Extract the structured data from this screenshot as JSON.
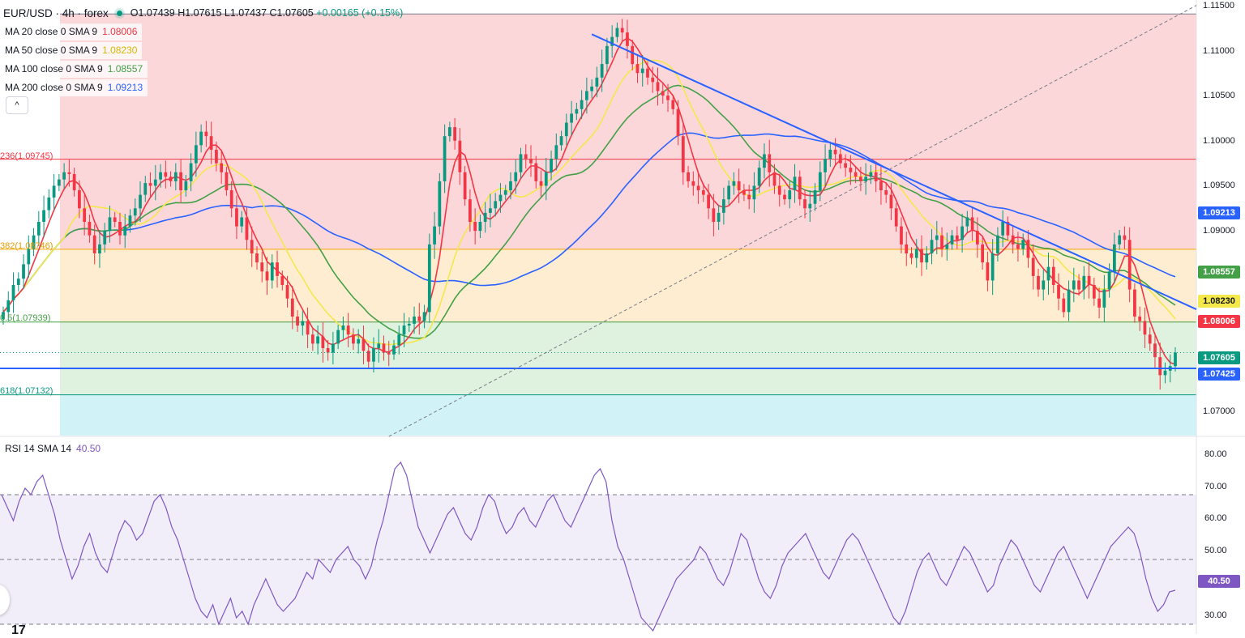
{
  "header": {
    "symbol": "EUR/USD · 4h · forex",
    "open": "O1.07439",
    "high": "H1.07615",
    "low": "L1.07437",
    "close": "C1.07605",
    "change": "+0.00165 (+0.15%)"
  },
  "legend": [
    {
      "label": "MA 20 close 0 SMA 9",
      "value": "1.08006",
      "color": "#f23645"
    },
    {
      "label": "MA 50 close 0 SMA 9",
      "value": "1.08230",
      "color": "#e8d32a"
    },
    {
      "label": "MA 100 close 0 SMA 9",
      "value": "1.08557",
      "color": "#43a047"
    },
    {
      "label": "MA 200 close 0 SMA 9",
      "value": "1.09213",
      "color": "#2962ff"
    }
  ],
  "collapse_icon": "^",
  "rsi_legend": {
    "label": "RSI 14 SMA 14",
    "value": "40.50"
  },
  "price_axis": [
    "1.11500",
    "1.11000",
    "1.10500",
    "1.10000",
    "1.09500",
    "1.09000",
    "1.07000"
  ],
  "rsi_axis": [
    "80.00",
    "70.00",
    "60.00",
    "50.00",
    "30.00"
  ],
  "price_tags": [
    {
      "text": "1.09213",
      "color": "#2962ff",
      "price": 1.09213
    },
    {
      "text": "1.08557",
      "color": "#43a047",
      "price": 1.08557
    },
    {
      "text": "1.08230",
      "color": "#f5e84a",
      "price": 1.0823,
      "textColor": "#131722"
    },
    {
      "text": "1.08006",
      "color": "#f23645",
      "price": 1.08006
    },
    {
      "text": "1.07605",
      "color": "#089981",
      "price": 1.07605
    },
    {
      "text": "1.07425",
      "color": "#2962ff",
      "price": 1.07425
    }
  ],
  "rsi_tag": {
    "text": "40.50",
    "color": "#7e57c2",
    "value": 40.5
  },
  "fib_labels": [
    {
      "text": "236(1.09745)",
      "price": 1.09745,
      "color": "#f23645"
    },
    {
      "text": "382(1.08746)",
      "price": 1.08746,
      "color": "#f7a600"
    },
    {
      "text": "0.5(1.07939)",
      "price": 1.07939,
      "color": "#43a047"
    },
    {
      "text": "618(1.07132)",
      "price": 1.07132,
      "color": "#089981"
    }
  ],
  "tv_logo": "17",
  "chart_data": {
    "type": "candlestick",
    "symbol": "EUR/USD",
    "timeframe": "4h",
    "price_range": [
      1.0668,
      1.1151
    ],
    "fib_levels": [
      {
        "level": "0.236",
        "price": 1.09745,
        "zone_color": "rgba(242,54,69,0.20)"
      },
      {
        "level": "0.382",
        "price": 1.08746,
        "zone_color": "rgba(255,183,77,0.25)"
      },
      {
        "level": "0.5",
        "price": 1.07939,
        "zone_color": "rgba(76,175,80,0.18)"
      },
      {
        "level": "0.618",
        "price": 1.07132,
        "zone_color": "rgba(0,150,136,0.18)"
      }
    ],
    "fib_top": 1.11355,
    "close_series": [
      1.0805,
      1.0818,
      1.0835,
      1.0842,
      1.0858,
      1.0875,
      1.089,
      1.0905,
      1.0918,
      1.0932,
      1.0945,
      1.0952,
      1.096,
      1.0958,
      1.094,
      1.092,
      1.0905,
      1.089,
      1.087,
      1.088,
      1.0895,
      1.091,
      1.0905,
      1.089,
      1.09,
      1.0912,
      1.092,
      1.0935,
      1.0948,
      1.0945,
      1.0952,
      1.096,
      1.0955,
      1.095,
      1.096,
      1.094,
      1.095,
      1.097,
      1.099,
      1.1005,
      1.1,
      1.0985,
      1.097,
      1.096,
      1.094,
      1.092,
      1.09,
      1.091,
      1.0885,
      1.087,
      1.086,
      1.085,
      1.084,
      1.086,
      1.0845,
      1.0835,
      1.082,
      1.08,
      1.079,
      1.0795,
      1.078,
      1.077,
      1.0778,
      1.0765,
      1.076,
      1.077,
      1.0785,
      1.079,
      1.078,
      1.077,
      1.0775,
      1.0762,
      1.075,
      1.0765,
      1.077,
      1.076,
      1.0758,
      1.0768,
      1.078,
      1.079,
      1.0792,
      1.08,
      1.0795,
      1.0805,
      1.088,
      1.09,
      1.095,
      1.1,
      1.101,
      1.0995,
      1.096,
      1.093,
      1.0905,
      1.0895,
      1.0905,
      1.0915,
      1.092,
      1.0928,
      1.0935,
      1.094,
      1.095,
      1.096,
      1.098,
      1.0975,
      1.097,
      1.095,
      1.0945,
      1.096,
      1.0975,
      1.099,
      1.1,
      1.1015,
      1.1025,
      1.103,
      1.104,
      1.105,
      1.1055,
      1.1065,
      1.108,
      1.11,
      1.111,
      1.112,
      1.1115,
      1.11,
      1.108,
      1.107,
      1.1075,
      1.1065,
      1.106,
      1.105,
      1.1045,
      1.104,
      1.103,
      1.1,
      1.096,
      1.095,
      1.0945,
      1.094,
      1.0935,
      1.092,
      1.0905,
      1.0915,
      1.093,
      1.0945,
      1.095,
      1.094,
      1.0935,
      1.093,
      1.0945,
      1.0965,
      1.098,
      1.096,
      1.0945,
      1.0935,
      1.093,
      1.094,
      1.0955,
      1.093,
      1.092,
      1.0925,
      1.094,
      1.096,
      1.0975,
      1.0985,
      1.098,
      1.097,
      1.0965,
      1.096,
      1.0955,
      1.095,
      1.0955,
      1.096,
      1.095,
      1.094,
      1.0935,
      1.092,
      1.09,
      1.088,
      1.087,
      1.0865,
      1.0875,
      1.086,
      1.087,
      1.0885,
      1.089,
      1.0875,
      1.088,
      1.089,
      1.0885,
      1.09,
      1.091,
      1.0895,
      1.088,
      1.086,
      1.084,
      1.087,
      1.089,
      1.0905,
      1.089,
      1.088,
      1.0875,
      1.0885,
      1.0865,
      1.0845,
      1.083,
      1.084,
      1.0855,
      1.0835,
      1.082,
      1.0805,
      1.083,
      1.084,
      1.083,
      1.0845,
      1.0835,
      1.082,
      1.081,
      1.083,
      1.085,
      1.088,
      1.089,
      1.0885,
      1.083,
      1.08,
      1.0795,
      1.078,
      1.077,
      1.0755,
      1.0735,
      1.074,
      1.0745,
      1.076
    ],
    "rsi_range": [
      27,
      82
    ],
    "rsi_levels": [
      70,
      50,
      30
    ],
    "rsi_series": [
      70,
      66,
      62,
      68,
      72,
      70,
      74,
      76,
      70,
      64,
      56,
      50,
      44,
      48,
      54,
      58,
      52,
      48,
      46,
      52,
      58,
      62,
      60,
      56,
      58,
      63,
      68,
      70,
      66,
      60,
      56,
      50,
      44,
      38,
      34,
      32,
      36,
      30,
      34,
      38,
      32,
      34,
      30,
      36,
      40,
      44,
      40,
      36,
      34,
      36,
      38,
      42,
      46,
      44,
      50,
      48,
      46,
      50,
      52,
      54,
      50,
      48,
      44,
      48,
      56,
      62,
      70,
      78,
      80,
      76,
      68,
      60,
      56,
      52,
      56,
      60,
      64,
      66,
      62,
      58,
      56,
      60,
      66,
      70,
      68,
      62,
      58,
      60,
      64,
      66,
      62,
      60,
      64,
      68,
      70,
      66,
      62,
      60,
      64,
      68,
      72,
      76,
      78,
      74,
      62,
      54,
      50,
      44,
      38,
      32,
      30,
      28,
      32,
      36,
      40,
      44,
      46,
      48,
      50,
      54,
      52,
      48,
      44,
      42,
      46,
      52,
      58,
      56,
      50,
      44,
      40,
      38,
      42,
      48,
      52,
      54,
      56,
      58,
      54,
      50,
      46,
      44,
      48,
      52,
      56,
      58,
      56,
      52,
      48,
      44,
      40,
      36,
      32,
      30,
      34,
      40,
      46,
      50,
      52,
      48,
      44,
      42,
      46,
      50,
      54,
      52,
      48,
      44,
      40,
      42,
      48,
      52,
      56,
      54,
      50,
      46,
      42,
      40,
      44,
      48,
      52,
      54,
      50,
      46,
      42,
      38,
      42,
      46,
      50,
      54,
      56,
      58,
      60,
      58,
      52,
      44,
      38,
      34,
      36,
      40,
      40.5
    ],
    "moving_averages": [
      {
        "name": "MA 20",
        "color": "#f23645",
        "period": 20
      },
      {
        "name": "MA 50",
        "color": "#f5e84a",
        "period": 50
      },
      {
        "name": "MA 100",
        "color": "#43a047",
        "period": 100
      },
      {
        "name": "MA 200",
        "color": "#2962ff",
        "period": 200
      }
    ],
    "horizontal_lines": [
      {
        "price": 1.07425,
        "color": "#2962ff"
      }
    ],
    "trendlines": [
      {
        "from": {
          "bar": 116,
          "price": 1.1113
        },
        "to": {
          "bar": "end",
          "price": 1.0808
        },
        "color": "#2962ff",
        "style": "solid"
      },
      {
        "from": {
          "bar": 76,
          "price": 1.0667
        },
        "to": {
          "bar": "end",
          "price": 1.1145
        },
        "color": "#787b86",
        "style": "dashed"
      }
    ]
  }
}
